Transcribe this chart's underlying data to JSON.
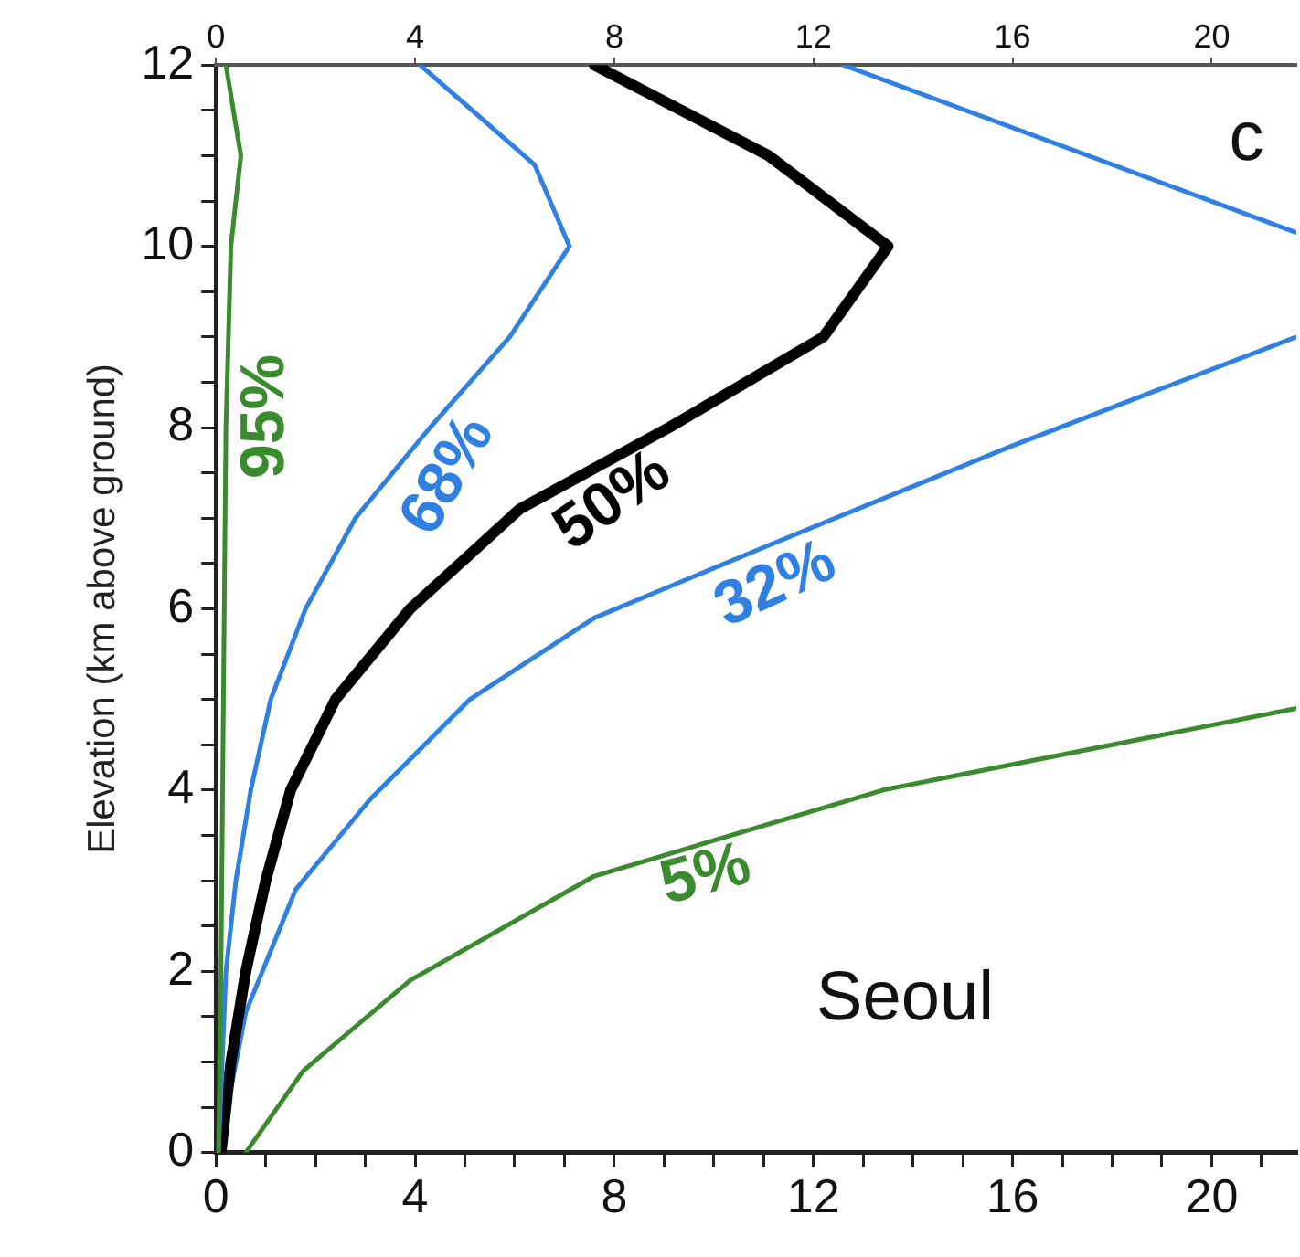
{
  "chart_data": {
    "type": "line",
    "ylabel": "Elevation (km above ground)",
    "marker": "none",
    "line_style": "solid",
    "xlim": [
      0,
      21.7
    ],
    "ylim": [
      0,
      12
    ],
    "x2lim": [
      0,
      21.7
    ],
    "xticks": [
      0,
      {
        "value": 1,
        "label": null
      },
      {
        "value": 2,
        "label": null
      },
      {
        "value": 3,
        "label": null
      },
      4,
      {
        "value": 5,
        "label": null
      },
      {
        "value": 6,
        "label": null
      },
      {
        "value": 7,
        "label": null
      },
      8,
      {
        "value": 9,
        "label": null
      },
      {
        "value": 10,
        "label": null
      },
      {
        "value": 11,
        "label": null
      },
      12,
      {
        "value": 13,
        "label": null
      },
      {
        "value": 14,
        "label": null
      },
      {
        "value": 15,
        "label": null
      },
      16,
      {
        "value": 17,
        "label": null
      },
      {
        "value": 18,
        "label": null
      },
      {
        "value": 19,
        "label": null
      },
      20,
      {
        "value": 21,
        "label": null
      }
    ],
    "x2ticks": [
      0,
      4,
      8,
      12,
      16,
      20
    ],
    "yticks": [
      0,
      {
        "value": 0.5,
        "label": null
      },
      {
        "value": 1,
        "label": null
      },
      {
        "value": 1.5,
        "label": null
      },
      2,
      {
        "value": 2.5,
        "label": null
      },
      {
        "value": 3,
        "label": null
      },
      {
        "value": 3.5,
        "label": null
      },
      4,
      {
        "value": 4.5,
        "label": null
      },
      {
        "value": 5,
        "label": null
      },
      {
        "value": 5.5,
        "label": null
      },
      6,
      {
        "value": 6.5,
        "label": null
      },
      {
        "value": 7,
        "label": null
      },
      {
        "value": 7.5,
        "label": null
      },
      8,
      {
        "value": 8.5,
        "label": null
      },
      {
        "value": 9,
        "label": null
      },
      {
        "value": 9.5,
        "label": null
      },
      10,
      {
        "value": 10.5,
        "label": null
      },
      {
        "value": 11,
        "label": null
      },
      {
        "value": 11.5,
        "label": null
      },
      12
    ],
    "series": [
      {
        "name": "95%",
        "color": "#3a8a2e",
        "x": [
          0.05,
          0.1,
          0.15,
          0.2,
          0.3,
          0.5,
          0.2
        ],
        "values": [
          0,
          2,
          5,
          8,
          10,
          11,
          12
        ]
      },
      {
        "name": "68%",
        "color": "#2f80e0",
        "x": [
          0.05,
          0.2,
          0.4,
          0.7,
          1.1,
          1.8,
          2.8,
          4.3,
          5.9,
          7.1,
          6.4,
          4.1
        ],
        "values": [
          0,
          2,
          3,
          4,
          5,
          6,
          7,
          8,
          9,
          10,
          10.9,
          12
        ]
      },
      {
        "name": "50%",
        "color": "#000000",
        "x": [
          0.1,
          0.3,
          0.6,
          1.0,
          1.5,
          2.4,
          3.9,
          6.1,
          9.1,
          12.2,
          13.5,
          11.1,
          7.6
        ],
        "values": [
          0,
          1,
          2,
          3,
          4,
          5,
          6,
          7.1,
          8,
          9,
          10,
          11,
          12
        ]
      },
      {
        "name": "32%",
        "color": "#2f80e0",
        "x": [
          0.05,
          0.6,
          1.6,
          3.1,
          5.1,
          7.6,
          11.1,
          16,
          21.7
        ],
        "values": [
          0,
          1.55,
          2.9,
          3.9,
          5,
          5.9,
          6.7,
          7.8,
          9
        ]
      },
      {
        "color": "#2f80e0",
        "x": [
          12.6,
          21.7
        ],
        "values": [
          12,
          10.15
        ]
      },
      {
        "name": "5%",
        "color": "#3a8a2e",
        "x": [
          0.6,
          1.75,
          3.9,
          7.6,
          13.4,
          21.7
        ],
        "values": [
          0,
          0.9,
          1.9,
          3.05,
          4.0,
          4.9
        ]
      }
    ],
    "annotations": [
      "c",
      "Seoul"
    ]
  }
}
